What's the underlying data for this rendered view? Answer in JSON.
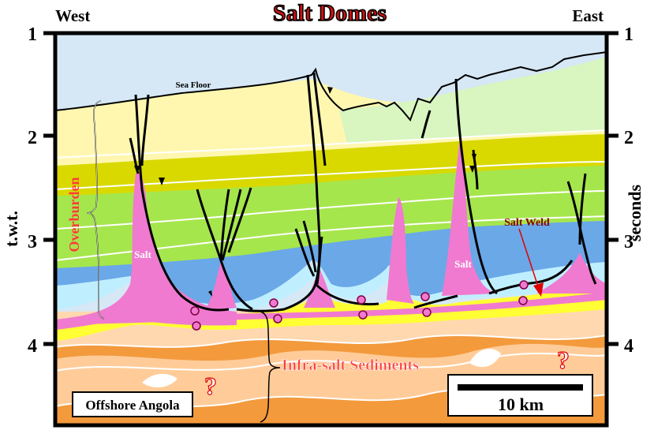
{
  "title": "Salt Domes",
  "direction": {
    "left": "West",
    "right": "East"
  },
  "axis": {
    "left_label": "t.w.t.",
    "right_label": "seconds",
    "ticks": [
      "1",
      "2",
      "3",
      "4"
    ]
  },
  "labels": {
    "sea_floor": "Sea Floor",
    "overburden": "Overburden",
    "salt_1": "Salt",
    "salt_2": "Salt",
    "salt_weld": "Salt Weld",
    "infra_salt": "Infra-salt Sediments",
    "question_1": "?",
    "question_2": "?",
    "location": "Offshore Angola",
    "scale": "10 km"
  },
  "colors": {
    "title": "#d01010",
    "salt": "#f07ad0",
    "salt_label": "#ffffff",
    "overburden_label": "#ff3b3b",
    "infra_label": "#ff3b3b",
    "salt_weld_label": "#8b0000",
    "arrow": "#e00000",
    "water": "#d6e8f5",
    "yellow": "#ffff33",
    "blue_layer": "#6aa8e8",
    "cyan_layer": "#bfefff",
    "green_layer": "#a6e64d",
    "olive_layer": "#d9d900",
    "cream_layer": "#fff7b0",
    "pale_green": "#d9f5c0",
    "infra_light": "#ffcc99",
    "infra_dark": "#f39a3c"
  }
}
